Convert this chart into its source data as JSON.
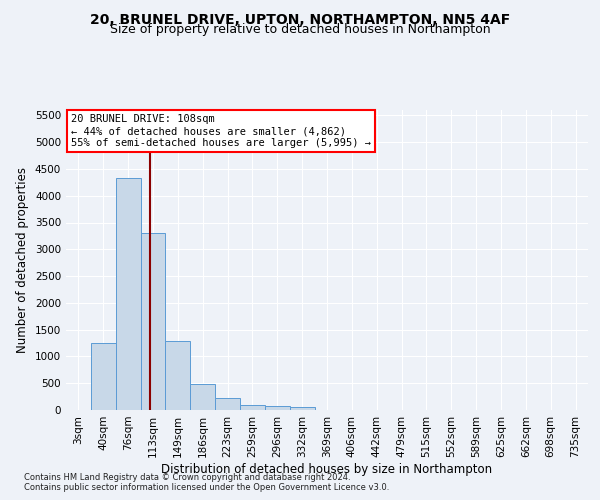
{
  "title": "20, BRUNEL DRIVE, UPTON, NORTHAMPTON, NN5 4AF",
  "subtitle": "Size of property relative to detached houses in Northampton",
  "xlabel": "Distribution of detached houses by size in Northampton",
  "ylabel": "Number of detached properties",
  "footnote1": "Contains HM Land Registry data © Crown copyright and database right 2024.",
  "footnote2": "Contains public sector information licensed under the Open Government Licence v3.0.",
  "bin_labels": [
    "3sqm",
    "40sqm",
    "76sqm",
    "113sqm",
    "149sqm",
    "186sqm",
    "223sqm",
    "259sqm",
    "296sqm",
    "332sqm",
    "369sqm",
    "406sqm",
    "442sqm",
    "479sqm",
    "515sqm",
    "552sqm",
    "589sqm",
    "625sqm",
    "662sqm",
    "698sqm",
    "735sqm"
  ],
  "bar_values": [
    0,
    1260,
    4330,
    3300,
    1280,
    490,
    215,
    85,
    70,
    55,
    0,
    0,
    0,
    0,
    0,
    0,
    0,
    0,
    0,
    0,
    0
  ],
  "bar_color": "#c8d8e8",
  "bar_edge_color": "#5b9bd5",
  "ylim": [
    0,
    5600
  ],
  "yticks": [
    0,
    500,
    1000,
    1500,
    2000,
    2500,
    3000,
    3500,
    4000,
    4500,
    5000,
    5500
  ],
  "property_label": "20 BRUNEL DRIVE: 108sqm",
  "annotation_line1": "← 44% of detached houses are smaller (4,862)",
  "annotation_line2": "55% of semi-detached houses are larger (5,995) →",
  "bg_color": "#eef2f8",
  "plot_bg_color": "#eef2f8",
  "grid_color": "#ffffff",
  "title_fontsize": 10,
  "subtitle_fontsize": 9,
  "axis_fontsize": 8.5,
  "tick_fontsize": 7.5,
  "annot_fontsize": 7.5,
  "footnote_fontsize": 6.0
}
